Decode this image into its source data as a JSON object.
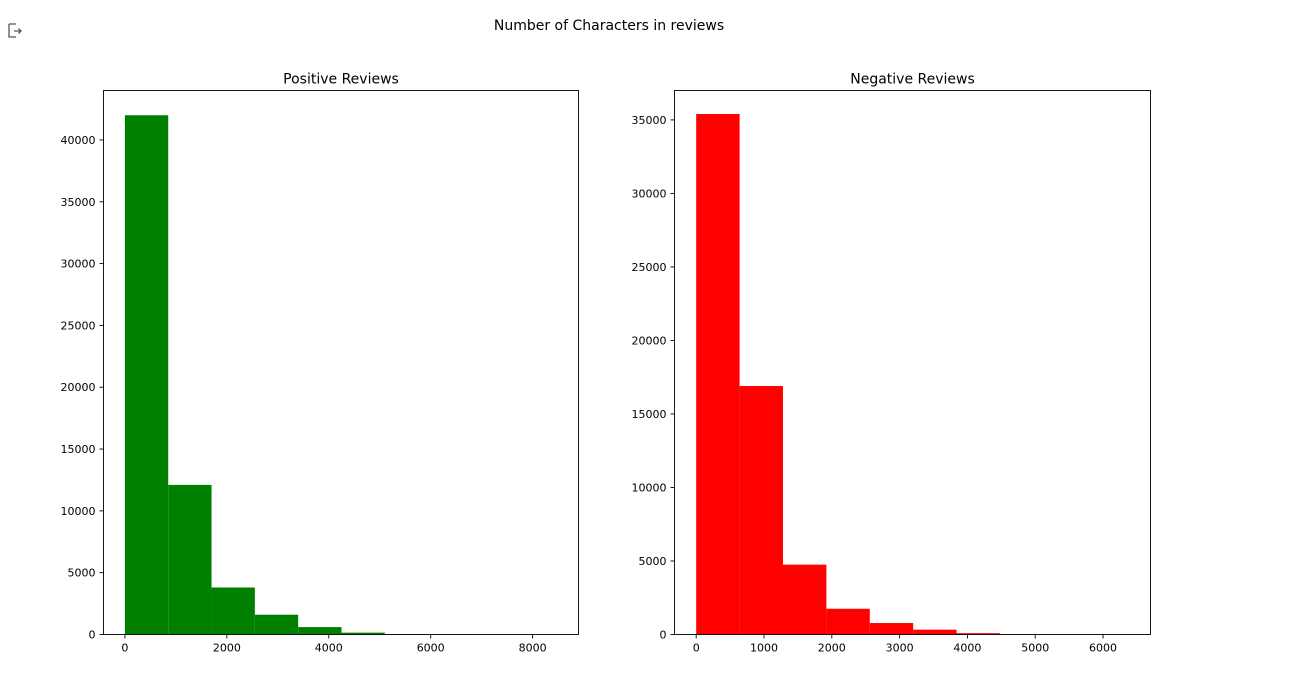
{
  "output_icon": "output-arrow-icon",
  "figure_title": "Number of Characters in reviews",
  "chart_data": [
    {
      "type": "bar",
      "title": "Positive Reviews",
      "xlabel": "",
      "ylabel": "",
      "color": "#008000",
      "bin_edges": [
        0,
        850,
        1700,
        2550,
        3400,
        4250,
        5100,
        5950,
        6800,
        7650,
        8500
      ],
      "values": [
        42000,
        12100,
        3800,
        1600,
        600,
        150,
        40,
        15,
        5,
        2
      ],
      "xlim": [
        -420,
        8900
      ],
      "ylim": [
        0,
        44000
      ],
      "xticks": [
        0,
        2000,
        4000,
        6000,
        8000
      ],
      "yticks": [
        0,
        5000,
        10000,
        15000,
        20000,
        25000,
        30000,
        35000,
        40000
      ],
      "xtick_labels": [
        "0",
        "2000",
        "4000",
        "6000",
        "8000"
      ],
      "ytick_labels": [
        "0",
        "5000",
        "10000",
        "15000",
        "20000",
        "25000",
        "30000",
        "35000",
        "40000"
      ],
      "grid": false
    },
    {
      "type": "bar",
      "title": "Negative Reviews",
      "xlabel": "",
      "ylabel": "",
      "color": "#ff0000",
      "bin_edges": [
        0,
        640,
        1280,
        1920,
        2560,
        3200,
        3840,
        4480,
        5120,
        5760,
        6400
      ],
      "values": [
        35400,
        16900,
        4750,
        1750,
        780,
        330,
        90,
        25,
        8,
        3
      ],
      "xlim": [
        -320,
        6700
      ],
      "ylim": [
        0,
        37000
      ],
      "xticks": [
        0,
        1000,
        2000,
        3000,
        4000,
        5000,
        6000
      ],
      "yticks": [
        0,
        5000,
        10000,
        15000,
        20000,
        25000,
        30000,
        35000
      ],
      "xtick_labels": [
        "0",
        "1000",
        "2000",
        "3000",
        "4000",
        "5000",
        "6000"
      ],
      "ytick_labels": [
        "0",
        "5000",
        "10000",
        "15000",
        "20000",
        "25000",
        "30000",
        "35000"
      ],
      "grid": false
    }
  ]
}
